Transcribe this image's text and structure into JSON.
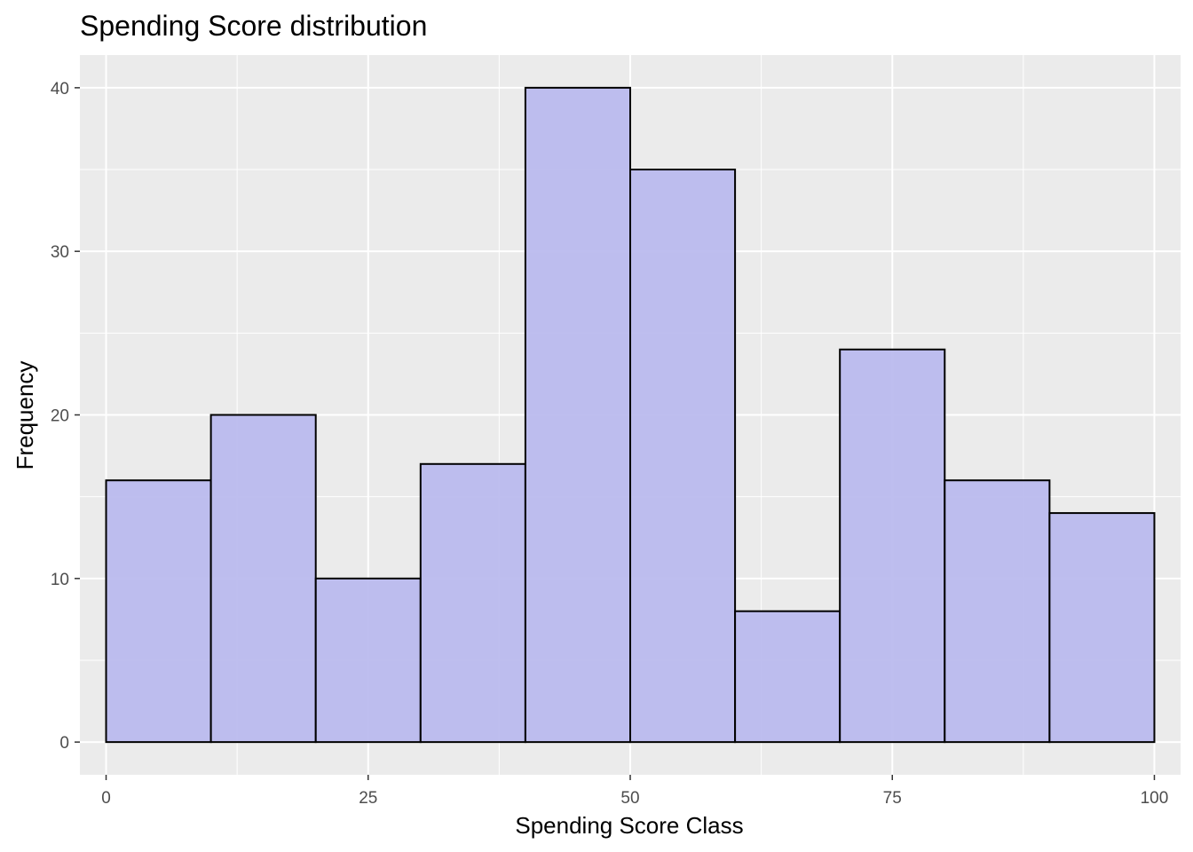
{
  "chart_data": {
    "type": "bar",
    "title": "Spending Score distribution",
    "xlabel": "Spending Score Class",
    "ylabel": "Frequency",
    "bins": [
      {
        "x0": 0,
        "x1": 10,
        "count": 16
      },
      {
        "x0": 10,
        "x1": 20,
        "count": 20
      },
      {
        "x0": 20,
        "x1": 30,
        "count": 10
      },
      {
        "x0": 30,
        "x1": 40,
        "count": 17
      },
      {
        "x0": 40,
        "x1": 50,
        "count": 40
      },
      {
        "x0": 50,
        "x1": 60,
        "count": 35
      },
      {
        "x0": 60,
        "x1": 70,
        "count": 8
      },
      {
        "x0": 70,
        "x1": 80,
        "count": 24
      },
      {
        "x0": 80,
        "x1": 90,
        "count": 16
      },
      {
        "x0": 90,
        "x1": 100,
        "count": 14
      }
    ],
    "xlim": [
      -2.5,
      102.5
    ],
    "ylim": [
      -2,
      42
    ],
    "xticks": [
      0,
      25,
      50,
      75,
      100
    ],
    "yticks": [
      0,
      10,
      20,
      30,
      40
    ],
    "grid": true,
    "colors": {
      "panel_background": "#ebebeb",
      "grid_major": "#ffffff",
      "bar_fill": "#babaee",
      "bar_stroke": "#000000",
      "tick_text": "#4d4d4d"
    }
  }
}
